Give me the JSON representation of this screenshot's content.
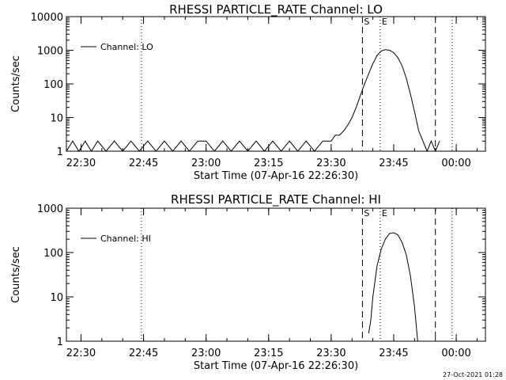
{
  "timestamp": "27-Oct-2021 01:28",
  "chart_data": [
    {
      "type": "line",
      "title": "RHESSI PARTICLE_RATE Channel: LO",
      "xlabel": "Start Time (07-Apr-16 22:26:30)",
      "ylabel": "Counts/sec",
      "y_scale": "log",
      "ylim": [
        1,
        10000
      ],
      "xlim": [
        "22:26:30",
        "00:07:00"
      ],
      "x_ticks": [
        "22:30",
        "22:45",
        "23:00",
        "23:15",
        "23:30",
        "23:45",
        "00:00"
      ],
      "y_ticks": [
        "1",
        "10",
        "100",
        "1000",
        "10000"
      ],
      "legend": {
        "entry": "Channel: LO",
        "placement": "top-left"
      },
      "markers": [
        {
          "label": "S",
          "time": "23:37:30",
          "style": "dashed"
        },
        {
          "label": "E",
          "time": "23:41:45",
          "style": "dotted"
        }
      ],
      "vlines": [
        {
          "time": "22:44:30",
          "style": "dotted"
        },
        {
          "time": "23:55:00",
          "style": "dashed"
        },
        {
          "time": "23:59:00",
          "style": "dotted"
        }
      ],
      "series": [
        {
          "name": "Channel: LO",
          "x": [
            "22:26:30",
            "22:28:00",
            "22:29:30",
            "22:31:00",
            "22:32:30",
            "22:34:00",
            "22:36:00",
            "22:38:00",
            "22:40:00",
            "22:42:00",
            "22:44:00",
            "22:46:00",
            "22:48:00",
            "22:50:00",
            "22:52:00",
            "22:54:00",
            "22:56:00",
            "22:58:00",
            "23:00:00",
            "23:02:00",
            "23:04:00",
            "23:06:00",
            "23:08:00",
            "23:10:00",
            "23:12:00",
            "23:14:00",
            "23:16:00",
            "23:18:00",
            "23:20:00",
            "23:22:00",
            "23:24:00",
            "23:26:00",
            "23:28:00",
            "23:30:00",
            "23:31:00",
            "23:32:00",
            "23:33:00",
            "23:34:00",
            "23:35:00",
            "23:36:00",
            "23:37:00",
            "23:38:00",
            "23:39:00",
            "23:40:00",
            "23:41:00",
            "23:42:00",
            "23:43:00",
            "23:44:00",
            "23:45:00",
            "23:46:00",
            "23:47:00",
            "23:48:00",
            "23:49:00",
            "23:50:00",
            "23:51:00",
            "23:52:00",
            "23:53:00",
            "23:54:00",
            "23:55:00",
            "23:56:00"
          ],
          "y": [
            1,
            2,
            1,
            2,
            1,
            2,
            1,
            2,
            1,
            2,
            1,
            2,
            1,
            2,
            1,
            2,
            1,
            2,
            2,
            1,
            2,
            1,
            2,
            1,
            2,
            1,
            2,
            1,
            2,
            1,
            2,
            1,
            2,
            2,
            3,
            3,
            4,
            6,
            10,
            20,
            45,
            100,
            200,
            400,
            700,
            950,
            1050,
            1000,
            850,
            600,
            350,
            150,
            50,
            15,
            4,
            2,
            1,
            2,
            1,
            2
          ]
        }
      ]
    },
    {
      "type": "line",
      "title": "RHESSI PARTICLE_RATE Channel: HI",
      "xlabel": "Start Time (07-Apr-16 22:26:30)",
      "ylabel": "Counts/sec",
      "y_scale": "log",
      "ylim": [
        1,
        1000
      ],
      "xlim": [
        "22:26:30",
        "00:07:00"
      ],
      "x_ticks": [
        "22:30",
        "22:45",
        "23:00",
        "23:15",
        "23:30",
        "23:45",
        "00:00"
      ],
      "y_ticks": [
        "1",
        "10",
        "100",
        "1000"
      ],
      "legend": {
        "entry": "Channel: HI",
        "placement": "top-left"
      },
      "markers": [
        {
          "label": "S",
          "time": "23:37:30",
          "style": "dashed"
        },
        {
          "label": "E",
          "time": "23:41:45",
          "style": "dotted"
        }
      ],
      "vlines": [
        {
          "time": "22:44:30",
          "style": "dotted"
        },
        {
          "time": "23:55:00",
          "style": "dashed"
        },
        {
          "time": "23:59:00",
          "style": "dotted"
        }
      ],
      "series": [
        {
          "name": "Channel: HI",
          "x": [
            "23:39:00",
            "23:39:30",
            "23:40:00",
            "23:41:00",
            "23:42:00",
            "23:43:00",
            "23:44:00",
            "23:45:00",
            "23:46:00",
            "23:47:00",
            "23:48:00",
            "23:49:00",
            "23:50:00",
            "23:50:45"
          ],
          "y": [
            1.5,
            3,
            10,
            50,
            120,
            200,
            270,
            280,
            250,
            170,
            90,
            30,
            6,
            1
          ]
        }
      ]
    }
  ]
}
